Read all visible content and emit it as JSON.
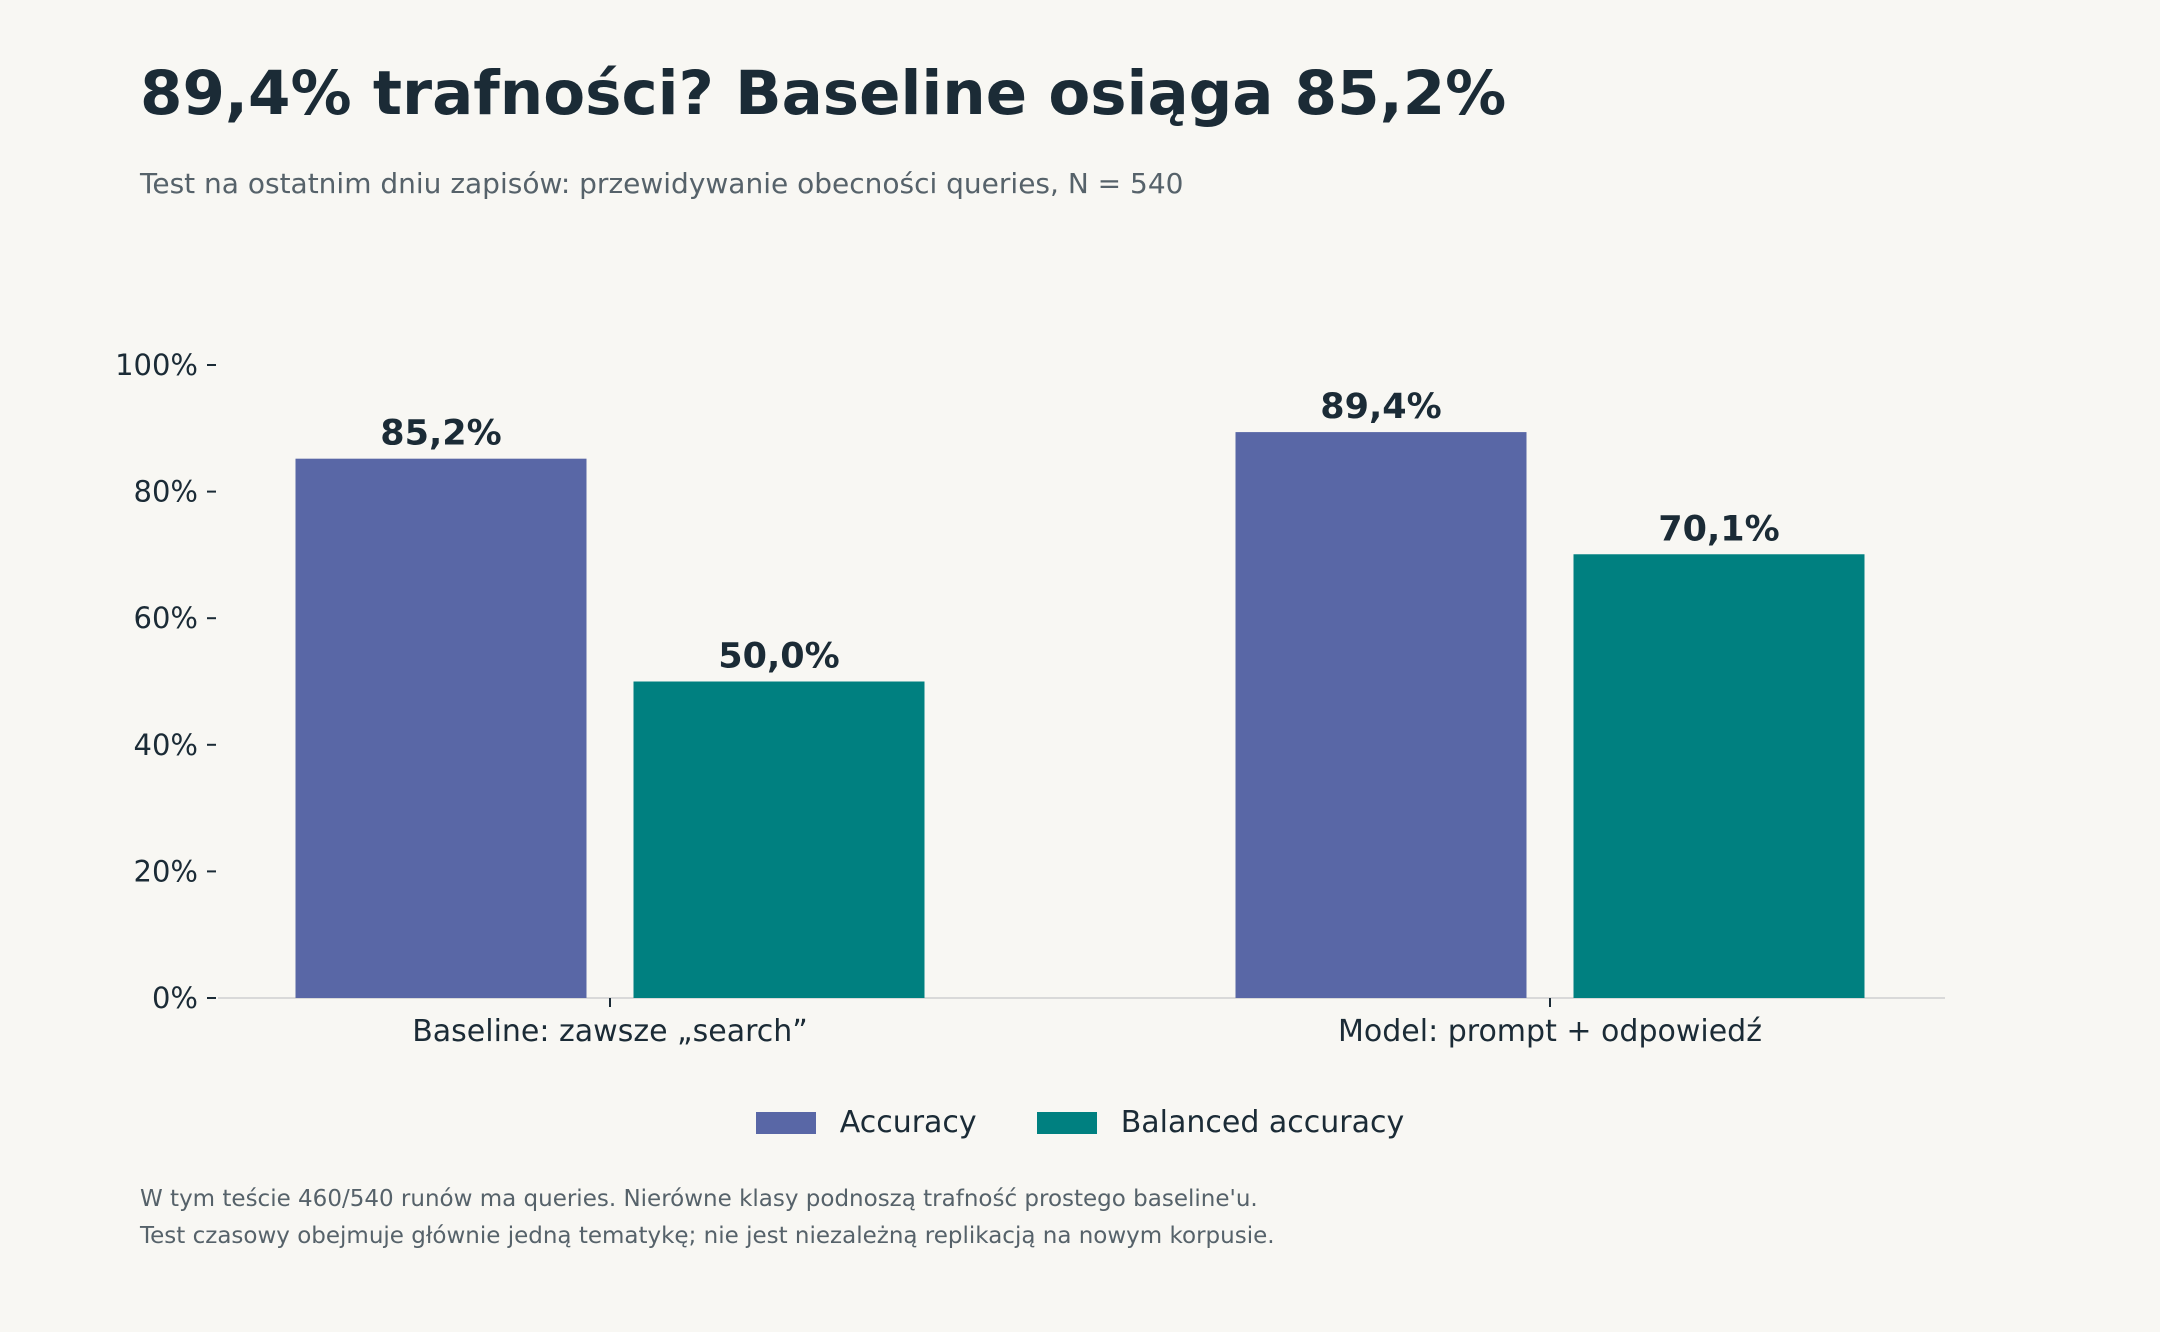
{
  "header": {
    "title": "89,4% trafności? Baseline osiąga 85,2%",
    "subtitle": "Test na ostatnim dniu zapisów: przewidywanie obecności queries, N = 540"
  },
  "colors": {
    "accuracy": "#5967a6",
    "balanced": "#008080",
    "text": "#1b2b36",
    "muted": "#56626a",
    "background": "#f8f7f3"
  },
  "chart_data": {
    "type": "bar",
    "title": "89,4% trafności? Baseline osiąga 85,2%",
    "subtitle": "Test na ostatnim dniu zapisów: przewidywanie obecności queries, N = 540",
    "categories": [
      "Baseline: zawsze „search”",
      "Model: prompt + odpowiedź"
    ],
    "series": [
      {
        "name": "Accuracy",
        "values": [
          85.2,
          89.4
        ],
        "labels": [
          "85,2%",
          "89,4%"
        ]
      },
      {
        "name": "Balanced accuracy",
        "values": [
          50.0,
          70.1
        ],
        "labels": [
          "50,0%",
          "70,1%"
        ]
      }
    ],
    "xlabel": "",
    "ylabel": "",
    "ylim": [
      0,
      100
    ],
    "yticks": [
      0,
      20,
      40,
      60,
      80,
      100
    ],
    "ytick_labels": [
      "0%",
      "20%",
      "40%",
      "60%",
      "80%",
      "100%"
    ],
    "grid": false,
    "legend_position": "bottom-center"
  },
  "footnotes": [
    "W tym teście 460/540 runów ma queries. Nierówne klasy podnoszą trafność prostego baseline'u.",
    "Test czasowy obejmuje głównie jedną tematykę; nie jest niezależną replikacją na nowym korpusie."
  ]
}
